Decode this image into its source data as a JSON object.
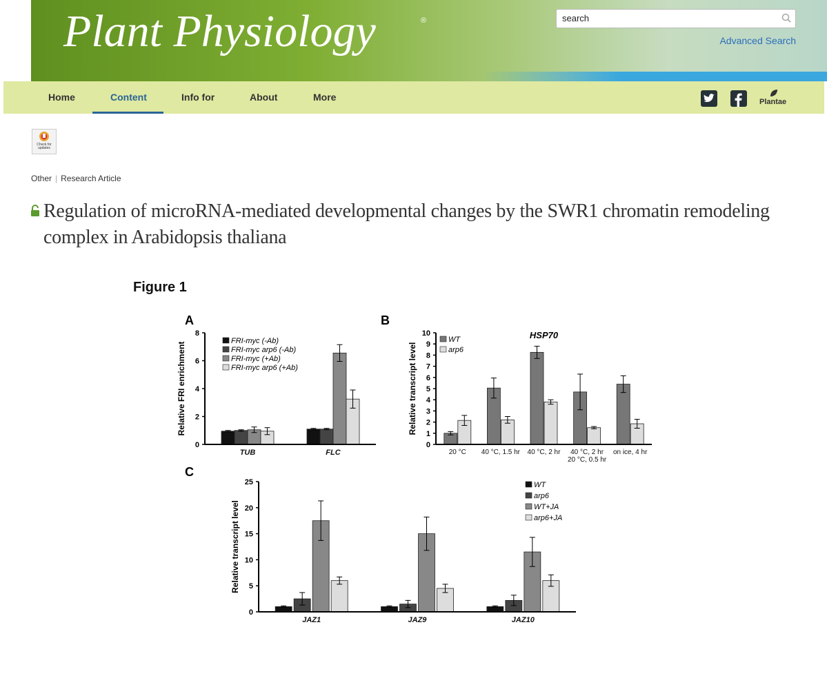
{
  "header": {
    "journal": "Plant Physiology",
    "trademark": "®",
    "search_placeholder": "search",
    "advanced_search": "Advanced Search"
  },
  "nav": {
    "items": [
      "Home",
      "Content",
      "Info for",
      "About",
      "More"
    ],
    "plantae": "Plantae"
  },
  "badge": "Check for updates",
  "article": {
    "categories": [
      "Other",
      "Research Article"
    ],
    "title": "Regulation of microRNA-mediated developmental changes by the SWR1 chromatin remodeling complex in Arabidopsis thaliana"
  },
  "figure": {
    "title": "Figure 1"
  },
  "chart_data": [
    {
      "type": "bar",
      "panel": "A",
      "ylabel": "Relative FRI enrichment",
      "categories": [
        "TUB",
        "FLC"
      ],
      "series": [
        {
          "name": "FRI-myc (-Ab)",
          "color": "#111111",
          "values": [
            0.95,
            1.1
          ],
          "errors": [
            0.05,
            0.05
          ]
        },
        {
          "name": "FRI-myc arp6 (-Ab)",
          "color": "#444444",
          "values": [
            1.0,
            1.1
          ],
          "errors": [
            0.05,
            0.05
          ]
        },
        {
          "name": "FRI-myc (+Ab)",
          "color": "#888888",
          "values": [
            1.05,
            6.55
          ],
          "errors": [
            0.2,
            0.6
          ]
        },
        {
          "name": "FRI-myc arp6 (+Ab)",
          "color": "#dddddd",
          "values": [
            0.95,
            3.25
          ],
          "errors": [
            0.25,
            0.65
          ]
        }
      ],
      "ylim": [
        0,
        8
      ],
      "yticks": [
        0,
        2,
        4,
        6,
        8
      ],
      "legend": "upper left"
    },
    {
      "type": "bar",
      "panel": "B",
      "title": "HSP70",
      "ylabel": "Relative transcript level",
      "categories": [
        "20 °C",
        "40 °C, 1.5 hr",
        "40 °C, 2 hr",
        "40 °C, 2 hr\n20 °C, 0.5 hr",
        "on ice, 4 hr"
      ],
      "series": [
        {
          "name": "WT",
          "color": "#777777",
          "values": [
            1.0,
            5.05,
            8.25,
            4.7,
            5.4
          ],
          "errors": [
            0.15,
            0.9,
            0.55,
            1.6,
            0.75
          ]
        },
        {
          "name": "arp6",
          "color": "#dddddd",
          "values": [
            2.15,
            2.2,
            3.8,
            1.5,
            1.85
          ],
          "errors": [
            0.45,
            0.3,
            0.2,
            0.1,
            0.4
          ]
        }
      ],
      "ylim": [
        0,
        10
      ],
      "yticks": [
        0,
        1,
        2,
        3,
        4,
        5,
        6,
        7,
        8,
        9,
        10
      ],
      "legend": "upper left"
    },
    {
      "type": "bar",
      "panel": "C",
      "ylabel": "Relative transcript level",
      "categories": [
        "JAZ1",
        "JAZ9",
        "JAZ10"
      ],
      "series": [
        {
          "name": "WT",
          "color": "#111111",
          "values": [
            1.0,
            1.0,
            1.0
          ],
          "errors": [
            0.15,
            0.15,
            0.15
          ]
        },
        {
          "name": "arp6",
          "color": "#444444",
          "values": [
            2.5,
            1.5,
            2.2
          ],
          "errors": [
            1.2,
            0.7,
            1.0
          ]
        },
        {
          "name": "WT+JA",
          "color": "#888888",
          "values": [
            17.5,
            15.0,
            11.5
          ],
          "errors": [
            3.8,
            3.2,
            2.8
          ]
        },
        {
          "name": "arp6+JA",
          "color": "#dddddd",
          "values": [
            6.0,
            4.5,
            6.0
          ],
          "errors": [
            0.7,
            0.8,
            1.1
          ]
        }
      ],
      "ylim": [
        0,
        25
      ],
      "yticks": [
        0,
        5,
        10,
        15,
        20,
        25
      ],
      "legend": "upper right"
    }
  ]
}
